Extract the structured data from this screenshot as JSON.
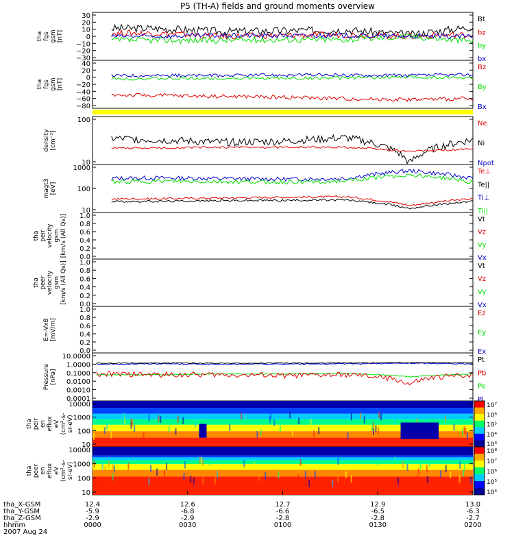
{
  "title": "P5 (TH-A) fields and ground moments overview",
  "colors": {
    "black": "#000000",
    "red": "#e00000",
    "green": "#00dd00",
    "blue": "#0000cc",
    "yellow": "#ffff00"
  },
  "chart_data": {
    "type": "line",
    "title": "P5 (TH-A) fields and ground moments overview",
    "x_axis": {
      "rows": [
        {
          "label": "tha_X-GSM",
          "values": [
            "12.4",
            "12.6",
            "12.7",
            "12.9",
            "13.0"
          ]
        },
        {
          "label": "tha_Y-GSM",
          "values": [
            "-5.9",
            "-6.8",
            "-6.6",
            "-6.5",
            "-6.3"
          ]
        },
        {
          "label": "tha_Z-GSM",
          "values": [
            "-2.9",
            "-2.9",
            "-2.8",
            "-2.8",
            "-2.7"
          ]
        },
        {
          "label": "hhmm",
          "values": [
            "0000",
            "0030",
            "0100",
            "0130",
            "0200"
          ]
        }
      ],
      "date": "2007 Aug 24",
      "range": [
        "00:00",
        "02:00"
      ]
    },
    "panels": [
      {
        "ylabel": [
          "tha",
          "fgs",
          "gsm",
          "[nT]"
        ],
        "ticks": [
          "30",
          "20",
          "10",
          "0",
          "−10",
          "−20",
          "−30"
        ],
        "ylim": [
          -30,
          30
        ],
        "legend": [
          {
            "name": "Bt",
            "color": "#000000"
          },
          {
            "name": "bz",
            "color": "#e00000"
          },
          {
            "name": "by",
            "color": "#00dd00"
          },
          {
            "name": "bx",
            "color": "#0000cc"
          }
        ],
        "series": [
          {
            "name": "Bt",
            "level": [
              10,
              10,
              6,
              7,
              8,
              2,
              12
            ],
            "noise": 5
          },
          {
            "name": "bz",
            "level": [
              4,
              4,
              0,
              1,
              2,
              0,
              2
            ],
            "noise": 4
          },
          {
            "name": "by",
            "level": [
              -5,
              -5,
              -5,
              -4,
              -4,
              0,
              -6
            ],
            "noise": 4
          },
          {
            "name": "bx",
            "level": [
              0,
              0,
              1,
              1,
              1,
              0,
              0
            ],
            "noise": 3
          }
        ]
      },
      {
        "ylabel": [
          "tha",
          "fgs",
          "gsm",
          "[nT]"
        ],
        "ticks": [
          "40",
          "20",
          "0",
          "−20",
          "−40",
          "−60",
          "−80"
        ],
        "ylim": [
          -80,
          40
        ],
        "legend": [
          {
            "name": "Bz",
            "color": "#e00000"
          },
          {
            "name": "By",
            "color": "#00dd00"
          },
          {
            "name": "Bx",
            "color": "#0000cc"
          }
        ],
        "series": [
          {
            "name": "Bz",
            "level": [
              -46,
              -48,
              -50,
              -52,
              -56,
              -58,
              -56
            ],
            "noise": 5
          },
          {
            "name": "By",
            "level": [
              -6,
              -6,
              -5,
              -5,
              -4,
              -2,
              -4
            ],
            "noise": 4
          },
          {
            "name": "Bx",
            "level": [
              2,
              2,
              2,
              3,
              3,
              2,
              4
            ],
            "noise": 4
          }
        ]
      },
      {
        "ylabel": [
          "density",
          "[cm⁻³]"
        ],
        "ticks": [
          "100",
          "10"
        ],
        "log_decades": [
          0.45,
          2.3
        ],
        "legend": [
          {
            "name": "Ne",
            "color": "#e00000"
          },
          {
            "name": "Ni",
            "color": "#000000"
          },
          {
            "name": "Npot",
            "color": "#0000cc"
          }
        ],
        "series": [
          {
            "name": "Ni",
            "level": [
              30,
              25,
              20,
              22,
              30,
              3,
              25
            ],
            "noise": 0.15
          },
          {
            "name": "Ne",
            "level": [
              12,
              12,
              13,
              13,
              13,
              9,
              11
            ],
            "noise": 0.04
          }
        ]
      },
      {
        "ylabel": [
          "magt3",
          "[eV]"
        ],
        "ticks": [
          "1000",
          "100",
          "10"
        ],
        "log_decades": [
          0.85,
          3.15
        ],
        "legend": [
          {
            "name": "Te⊥",
            "color": "#e00000"
          },
          {
            "name": "Te||",
            "color": "#000000"
          },
          {
            "name": "Ti⊥",
            "color": "#0000cc"
          },
          {
            "name": "Ti||",
            "color": "#00dd00"
          }
        ],
        "series": [
          {
            "name": "Ti⊥",
            "level": [
              300,
              320,
              300,
              280,
              300,
              700,
              300
            ],
            "noise": 0.1
          },
          {
            "name": "Ti||",
            "level": [
              200,
              220,
              210,
              200,
              220,
              450,
              200
            ],
            "noise": 0.1
          },
          {
            "name": "Te⊥",
            "level": [
              32,
              32,
              35,
              38,
              40,
              15,
              32
            ],
            "noise": 0.05
          },
          {
            "name": "Te||",
            "level": [
              24,
              24,
              26,
              27,
              28,
              11,
              24
            ],
            "noise": 0.05
          }
        ]
      },
      {
        "ylabel": [
          "tha",
          "peir",
          "velocity",
          "gsm",
          "[km/s (All Qs)]"
        ],
        "ticks": [
          "1.0",
          "0.8",
          "0.6",
          "0.4",
          "0.2",
          "0.0"
        ],
        "ylim": [
          0,
          1
        ],
        "legend": [
          {
            "name": "Vt",
            "color": "#000000"
          },
          {
            "name": "Vz",
            "color": "#e00000"
          },
          {
            "name": "Vy",
            "color": "#00dd00"
          },
          {
            "name": "Vx",
            "color": "#0000cc"
          }
        ],
        "series": []
      },
      {
        "ylabel": [
          "tha",
          "peer",
          "velocity",
          "gsm",
          "[km/s (All Qs)]"
        ],
        "ticks": [
          "1.0",
          "0.8",
          "0.6",
          "0.4",
          "0.2",
          "0.0"
        ],
        "ylim": [
          0,
          1
        ],
        "legend": [
          {
            "name": "Vt",
            "color": "#000000"
          },
          {
            "name": "Vz",
            "color": "#e00000"
          },
          {
            "name": "Vy",
            "color": "#00dd00"
          },
          {
            "name": "Vx",
            "color": "#0000cc"
          }
        ],
        "series": []
      },
      {
        "ylabel": [
          "E=-VxB",
          "[mV/m]"
        ],
        "ticks": [
          "1.0",
          "0.8",
          "0.6",
          "0.4",
          "0.2",
          "0.0"
        ],
        "ylim": [
          0,
          1
        ],
        "legend": [
          {
            "name": "Ez",
            "color": "#e00000"
          },
          {
            "name": "Ey",
            "color": "#00dd00"
          },
          {
            "name": "Ex",
            "color": "#0000cc"
          }
        ],
        "series": []
      },
      {
        "ylabel": [
          "Pressure",
          "[nPa]"
        ],
        "ticks": [
          "10.0000",
          "1.0000",
          "0.1000",
          "0.0100",
          "0.0010",
          "0.0001"
        ],
        "log_decades": [
          -4.2,
          1.1
        ],
        "legend": [
          {
            "name": "Pt",
            "color": "#000000"
          },
          {
            "name": "Pb",
            "color": "#e00000"
          },
          {
            "name": "Pe",
            "color": "#00dd00"
          },
          {
            "name": "Pi",
            "color": "#0000cc"
          }
        ],
        "series": [
          {
            "name": "Pi",
            "level": [
              0.7,
              0.8,
              0.7,
              0.75,
              0.8,
              0.9,
              0.8
            ],
            "noise": 0.05
          },
          {
            "name": "Pt",
            "level": [
              0.9,
              1.0,
              0.9,
              0.95,
              1.0,
              1.1,
              1.0
            ],
            "noise": 0.05
          },
          {
            "name": "Pe",
            "level": [
              0.05,
              0.05,
              0.06,
              0.06,
              0.07,
              0.03,
              0.06
            ],
            "noise": 0.05
          },
          {
            "name": "Pb",
            "level": [
              0.06,
              0.05,
              0.05,
              0.04,
              0.05,
              0.004,
              0.05
            ],
            "noise": 0.3
          }
        ]
      },
      {
        "type": "heatmap",
        "ylabel": [
          "tha",
          "peir",
          "en",
          "eflux",
          "eV",
          "(cm²-s-",
          "sr-eV)"
        ],
        "ticks": [
          "10000",
          "1000",
          "100",
          "10"
        ],
        "colorbar": [
          "10⁷",
          "10⁶",
          "10⁵",
          "10⁴",
          "10³"
        ]
      },
      {
        "type": "heatmap",
        "ylabel": [
          "tha",
          "peer",
          "en",
          "eflux",
          "eV",
          "(cm²-s-",
          "sr-eV)"
        ],
        "ticks": [
          "10000",
          "1000",
          "100",
          "10"
        ],
        "colorbar": [
          "10⁸",
          "10⁷",
          "10⁶",
          "10⁵",
          "10⁴"
        ]
      }
    ]
  }
}
